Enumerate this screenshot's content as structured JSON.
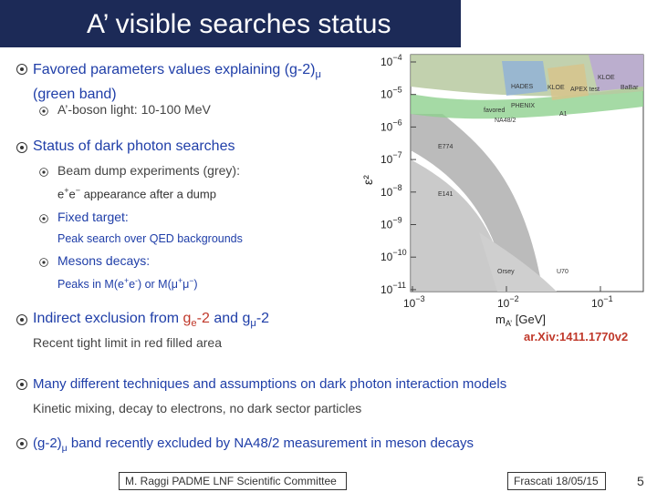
{
  "title": "A’ visible searches status",
  "bullets": [
    {
      "parts": [
        "Favored parameters values explaining (g-2)",
        "μ",
        " (green band)"
      ]
    },
    {
      "parts": [
        "A’-boson light: 10-100 MeV"
      ]
    },
    {
      "parts": [
        "Status of dark photon searches"
      ]
    },
    {
      "parts": [
        "Beam dump experiments (grey):"
      ]
    },
    {
      "parts": [
        "e",
        "+",
        "e",
        "−",
        " appearance after a dump"
      ]
    },
    {
      "parts": [
        "Fixed target:"
      ]
    },
    {
      "parts": [
        "Peak search over QED backgrounds"
      ]
    },
    {
      "parts": [
        "Mesons decays:"
      ]
    },
    {
      "parts": [
        "Peaks in M(e",
        "+",
        "e",
        "-",
        ") or M(μ",
        "+",
        "μ",
        "−",
        ")"
      ]
    },
    {
      "parts": [
        "Indirect exclusion from ",
        "g",
        "e",
        "-2",
        " and g",
        "μ",
        "-2"
      ]
    },
    {
      "parts": [
        "Recent tight limit in red filled area"
      ]
    },
    {
      "parts": [
        "Many different techniques and assumptions on dark photon interaction models"
      ]
    },
    {
      "parts": [
        "Kinetic mixing, decay to electrons, no dark sector particles"
      ]
    },
    {
      "parts": [
        "(g-2)",
        "μ",
        " band recently excluded by NA48/2 measurement in meson decays"
      ]
    }
  ],
  "plot": {
    "y_label": "ε²",
    "x_label": [
      "m",
      "A’",
      " [GeV]"
    ],
    "y_ticks": [
      [
        "10",
        "−4"
      ],
      [
        "10",
        "−5"
      ],
      [
        "10",
        "−6"
      ],
      [
        "10",
        "−7"
      ],
      [
        "10",
        "−8"
      ],
      [
        "10",
        "−9"
      ],
      [
        "10",
        "−10"
      ],
      [
        "10",
        "−11"
      ]
    ],
    "x_ticks": [
      [
        "10",
        "−3"
      ],
      [
        "10",
        "−2"
      ],
      [
        "10",
        "−1"
      ]
    ],
    "region_labels": [
      "KLOE",
      "BaBar",
      "HADES",
      "KLOE",
      "APEX test",
      "PHENIX",
      "A1",
      "favored",
      "NA48/2",
      "E774",
      "E141",
      "Orsey",
      "U70"
    ],
    "reference": "ar.Xiv:1411.1770v2"
  },
  "footer": {
    "left": "M. Raggi PADME LNF Scientific Committee",
    "right": "Frascati 18/05/15",
    "page": "5"
  }
}
